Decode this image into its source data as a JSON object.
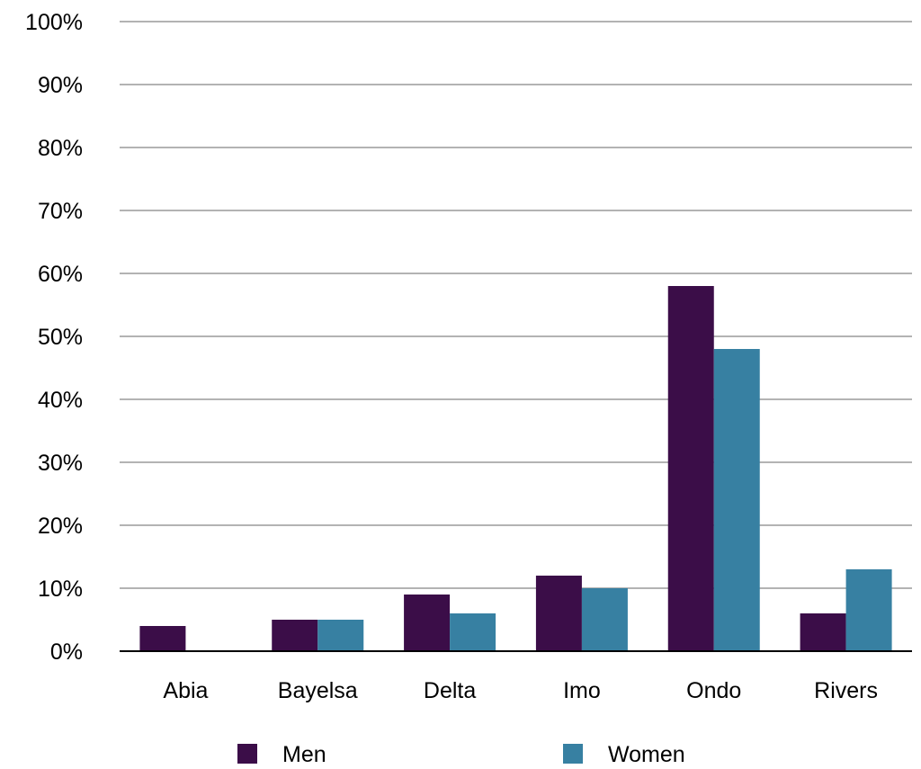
{
  "chart_data": {
    "type": "bar",
    "categories": [
      "Abia",
      "Bayelsa",
      "Delta",
      "Imo",
      "Ondo",
      "Rivers"
    ],
    "series": [
      {
        "name": "Men",
        "color": "#3b0d48",
        "values": [
          4,
          5,
          9,
          12,
          58,
          6
        ]
      },
      {
        "name": "Women",
        "color": "#3780a2",
        "values": [
          0,
          5,
          6,
          10,
          48,
          13
        ]
      }
    ],
    "ylim": [
      0,
      100
    ],
    "yticks": [
      0,
      10,
      20,
      30,
      40,
      50,
      60,
      70,
      80,
      90,
      100
    ],
    "ytick_labels": [
      "0%",
      "10%",
      "20%",
      "30%",
      "40%",
      "50%",
      "60%",
      "70%",
      "80%",
      "90%",
      "100%"
    ],
    "grid": true,
    "legend": "bottom",
    "title": "",
    "xlabel": "",
    "ylabel": ""
  }
}
